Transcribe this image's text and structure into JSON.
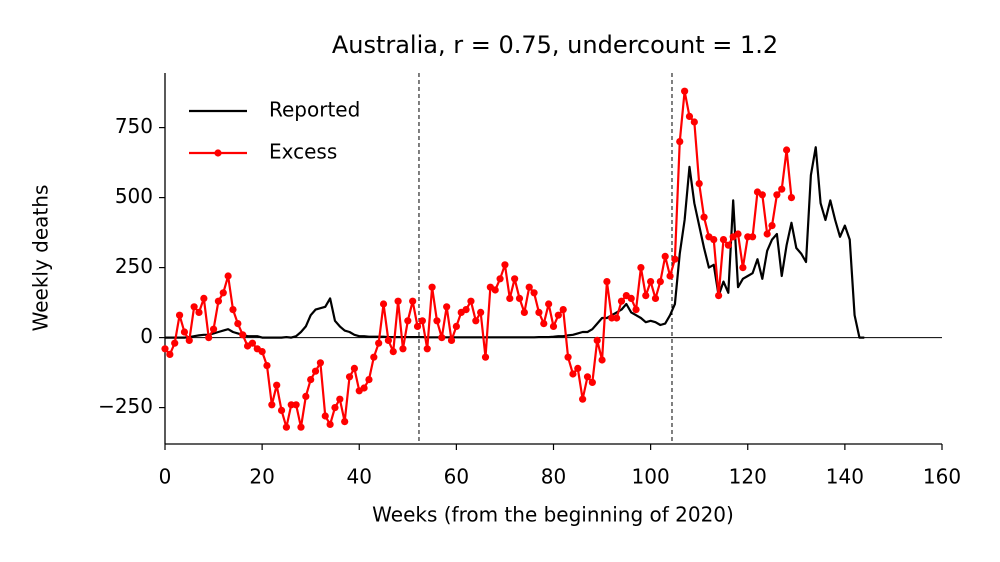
{
  "chart_data": {
    "type": "line",
    "title": "Australia, r = 0.75, undercount = 1.2",
    "xlabel": "Weeks (from the beginning of 2020)",
    "ylabel": "Weekly deaths",
    "xlim": [
      0,
      160
    ],
    "ylim": [
      -380,
      945
    ],
    "xticks": [
      0,
      20,
      40,
      60,
      80,
      100,
      120,
      140,
      160
    ],
    "yticks": [
      {
        "value": -250,
        "label": "−250"
      },
      0,
      250,
      500,
      750
    ],
    "vlines": [
      52.3,
      104.4
    ],
    "hlines": [
      0
    ],
    "legend": "upper-left",
    "series": [
      {
        "name": "Reported",
        "color": "#000000",
        "marker": false,
        "x": [
          0,
          1,
          2,
          3,
          4,
          5,
          6,
          7,
          8,
          9,
          10,
          11,
          12,
          13,
          14,
          15,
          16,
          17,
          18,
          19,
          20,
          21,
          22,
          23,
          24,
          25,
          26,
          27,
          28,
          29,
          30,
          31,
          32,
          33,
          34,
          35,
          36,
          37,
          38,
          39,
          40,
          41,
          42,
          43,
          44,
          45,
          46,
          47,
          48,
          49,
          50,
          51,
          52,
          53,
          54,
          55,
          56,
          57,
          58,
          59,
          60,
          61,
          62,
          63,
          64,
          65,
          66,
          67,
          68,
          69,
          70,
          71,
          72,
          73,
          74,
          75,
          76,
          77,
          78,
          79,
          80,
          81,
          82,
          83,
          84,
          85,
          86,
          87,
          88,
          89,
          90,
          91,
          92,
          93,
          94,
          95,
          96,
          97,
          98,
          99,
          100,
          101,
          102,
          103,
          104,
          105,
          106,
          107,
          108,
          109,
          110,
          111,
          112,
          113,
          114,
          115,
          116,
          117,
          118,
          119,
          120,
          121,
          122,
          123,
          124,
          125,
          126,
          127,
          128,
          129,
          130,
          131,
          132,
          133,
          134,
          135,
          136,
          137,
          138,
          139,
          140,
          141,
          142,
          143,
          144
        ],
        "values": [
          0,
          0,
          0,
          0,
          0,
          2,
          5,
          8,
          10,
          10,
          15,
          20,
          25,
          30,
          20,
          15,
          10,
          5,
          5,
          5,
          0,
          0,
          0,
          0,
          0,
          2,
          0,
          5,
          20,
          40,
          80,
          100,
          105,
          110,
          140,
          60,
          40,
          25,
          20,
          10,
          5,
          5,
          3,
          3,
          3,
          3,
          2,
          2,
          2,
          2,
          2,
          2,
          2,
          2,
          1,
          1,
          1,
          1,
          1,
          1,
          1,
          1,
          1,
          1,
          1,
          1,
          1,
          1,
          1,
          1,
          1,
          1,
          1,
          1,
          1,
          1,
          1,
          2,
          2,
          2,
          3,
          5,
          5,
          8,
          10,
          15,
          20,
          20,
          30,
          50,
          70,
          70,
          80,
          90,
          100,
          120,
          90,
          80,
          70,
          55,
          60,
          55,
          45,
          50,
          80,
          120,
          300,
          420,
          610,
          480,
          400,
          320,
          250,
          260,
          150,
          200,
          160,
          490,
          180,
          210,
          220,
          230,
          280,
          210,
          310,
          350,
          370,
          220,
          330,
          410,
          320,
          300,
          270,
          580,
          680,
          480,
          420,
          490,
          420,
          360,
          400,
          350,
          80,
          0,
          0
        ]
      },
      {
        "name": "Excess",
        "color": "#ff0000",
        "marker": true,
        "x": [
          0,
          1,
          2,
          3,
          4,
          5,
          6,
          7,
          8,
          9,
          10,
          11,
          12,
          13,
          14,
          15,
          16,
          17,
          18,
          19,
          20,
          21,
          22,
          23,
          24,
          25,
          26,
          27,
          28,
          29,
          30,
          31,
          32,
          33,
          34,
          35,
          36,
          37,
          38,
          39,
          40,
          41,
          42,
          43,
          44,
          45,
          46,
          47,
          48,
          49,
          50,
          51,
          52,
          53,
          54,
          55,
          56,
          57,
          58,
          59,
          60,
          61,
          62,
          63,
          64,
          65,
          66,
          67,
          68,
          69,
          70,
          71,
          72,
          73,
          74,
          75,
          76,
          77,
          78,
          79,
          80,
          81,
          82,
          83,
          84,
          85,
          86,
          87,
          88,
          89,
          90,
          91,
          92,
          93,
          94,
          95,
          96,
          97,
          98,
          99,
          100,
          101,
          102,
          103,
          104,
          105,
          106,
          107,
          108,
          109,
          110,
          111,
          112,
          113,
          114,
          115,
          116,
          117,
          118,
          119,
          120,
          121,
          122,
          123,
          124,
          125,
          126,
          127,
          128,
          129
        ],
        "values": [
          -40,
          -60,
          -20,
          80,
          20,
          -10,
          110,
          90,
          140,
          0,
          30,
          130,
          160,
          220,
          100,
          50,
          10,
          -30,
          -20,
          -40,
          -50,
          -100,
          -240,
          -170,
          -260,
          -320,
          -240,
          -240,
          -320,
          -210,
          -150,
          -120,
          -90,
          -280,
          -310,
          -250,
          -220,
          -300,
          -140,
          -110,
          -190,
          -180,
          -150,
          -70,
          -20,
          120,
          -10,
          -50,
          130,
          -40,
          60,
          130,
          40,
          60,
          -40,
          180,
          60,
          0,
          110,
          -10,
          40,
          90,
          100,
          130,
          60,
          90,
          -70,
          180,
          170,
          210,
          260,
          140,
          210,
          140,
          90,
          180,
          160,
          90,
          50,
          120,
          40,
          80,
          100,
          -70,
          -130,
          -110,
          -220,
          -140,
          -160,
          -10,
          -80,
          200,
          70,
          70,
          130,
          150,
          140,
          100,
          250,
          150,
          200,
          140,
          200,
          290,
          220,
          280,
          700,
          880,
          790,
          770,
          550,
          430,
          360,
          350,
          150,
          350,
          330,
          360,
          370,
          250,
          360,
          360,
          520,
          510,
          370,
          400,
          510,
          530,
          670,
          500
        ]
      }
    ]
  }
}
